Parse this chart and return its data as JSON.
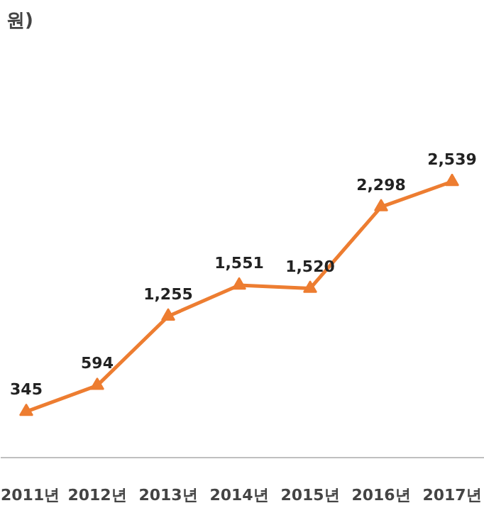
{
  "chart_data": {
    "type": "line",
    "title": "원)",
    "categories": [
      "2011년",
      "2012년",
      "2013년",
      "2014년",
      "2015년",
      "2016년",
      "2017년"
    ],
    "series": [
      {
        "color": "#ed7d31",
        "values": [
          345,
          594,
          1255,
          1551,
          1520,
          2298,
          2539
        ],
        "value_labels": [
          "345",
          "594",
          "1,255",
          "1,551",
          "1,520",
          "2,298",
          "2,539"
        ]
      }
    ],
    "marker": "triangle",
    "line_style": "solid"
  }
}
